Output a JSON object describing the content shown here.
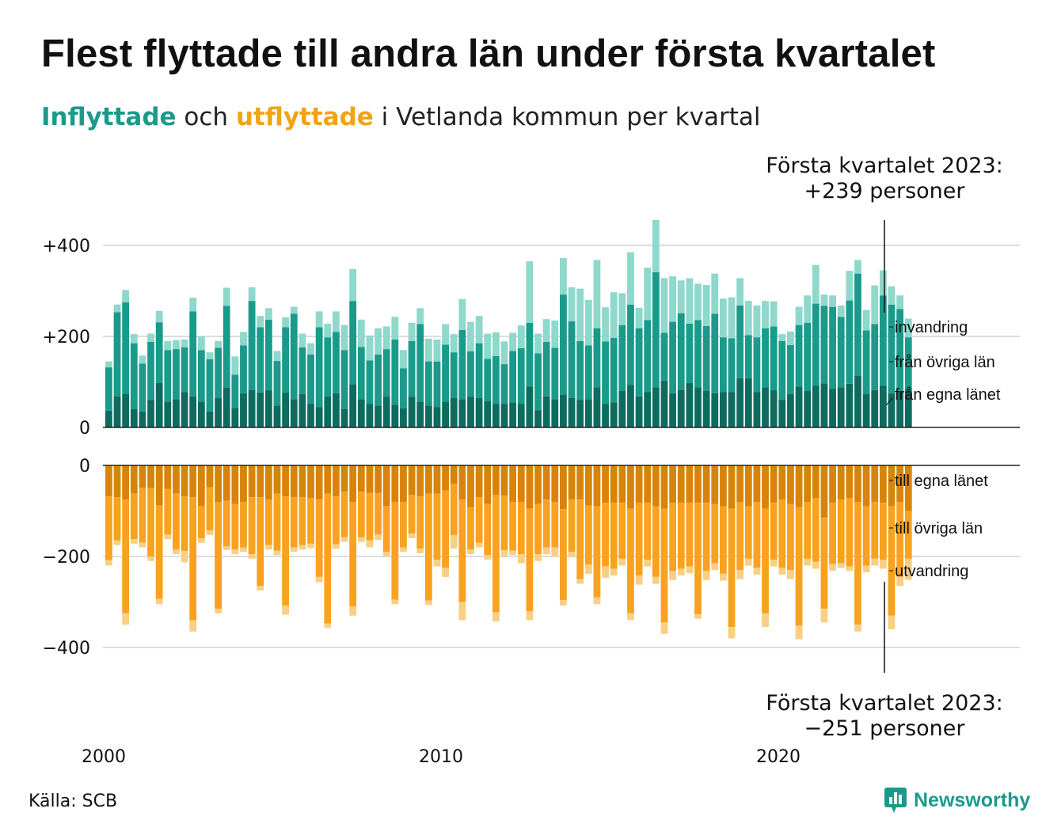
{
  "title": "Flest flyttade till andra län under första kvartalet",
  "subtitle": {
    "in_word": "Inflyttade",
    "and_word": "och",
    "out_word": "utflyttade",
    "rest": "i Vetlanda kommun per kvartal"
  },
  "source": "Källa: SCB",
  "logo_text": "Newsworthy",
  "colors": {
    "in_egna": "#0d6b5f",
    "in_ovriga": "#1a9a8a",
    "in_invandring": "#8ed8cc",
    "out_egna": "#d8840a",
    "out_ovriga": "#f8a21f",
    "out_utvandring": "#f9cf86",
    "grid": "#dddddd",
    "axis": "#222222"
  },
  "chart_data": {
    "type": "bar",
    "stacked": true,
    "period": "quarterly",
    "x_start": "2000 Q1",
    "x_end": "2023 Q1",
    "x_ticks": [
      "2000",
      "2010",
      "2020"
    ],
    "top_panel": {
      "y_ticks": [
        "+400",
        "+200",
        "0"
      ],
      "ylim": [
        0,
        460
      ],
      "series": [
        {
          "name": "från egna länet",
          "values": [
            37,
            68,
            73,
            40,
            35,
            60,
            98,
            57,
            62,
            78,
            68,
            57,
            35,
            65,
            87,
            43,
            75,
            83,
            77,
            82,
            48,
            77,
            62,
            73,
            52,
            45,
            68,
            75,
            40,
            95,
            62,
            52,
            48,
            67,
            50,
            42,
            67,
            57,
            48,
            45,
            57,
            65,
            62,
            67,
            65,
            58,
            52,
            52,
            55,
            52,
            90,
            38,
            68,
            62,
            72,
            65,
            60,
            62,
            88,
            52,
            55,
            80,
            93,
            68,
            78,
            88,
            103,
            75,
            83,
            98,
            88,
            80,
            75,
            78,
            78,
            108,
            108,
            78,
            88,
            82,
            60,
            73,
            90,
            80,
            92,
            97,
            85,
            88,
            96,
            113,
            73,
            82,
            92,
            75,
            80,
            85
          ]
        },
        {
          "name": "från övriga län",
          "values": [
            95,
            185,
            202,
            145,
            105,
            128,
            133,
            113,
            110,
            98,
            187,
            113,
            115,
            110,
            180,
            73,
            105,
            195,
            143,
            155,
            98,
            143,
            188,
            103,
            108,
            175,
            130,
            135,
            130,
            183,
            115,
            95,
            112,
            105,
            143,
            88,
            123,
            170,
            97,
            100,
            125,
            100,
            152,
            100,
            120,
            93,
            105,
            87,
            113,
            122,
            140,
            125,
            120,
            113,
            220,
            168,
            130,
            118,
            130,
            137,
            142,
            145,
            177,
            150,
            158,
            253,
            105,
            157,
            168,
            130,
            148,
            143,
            175,
            120,
            118,
            160,
            95,
            120,
            130,
            140,
            130,
            108,
            135,
            150,
            180,
            170,
            180,
            155,
            183,
            225,
            140,
            145,
            198,
            195,
            180,
            113
          ]
        },
        {
          "name": "invandring",
          "values": [
            13,
            17,
            27,
            20,
            18,
            18,
            25,
            20,
            20,
            17,
            30,
            30,
            15,
            15,
            40,
            40,
            30,
            30,
            25,
            25,
            22,
            22,
            15,
            30,
            25,
            35,
            30,
            45,
            55,
            70,
            60,
            55,
            58,
            50,
            50,
            40,
            40,
            35,
            50,
            48,
            45,
            40,
            68,
            65,
            60,
            55,
            52,
            50,
            40,
            50,
            135,
            43,
            50,
            60,
            80,
            75,
            115,
            100,
            150,
            75,
            100,
            70,
            115,
            45,
            115,
            115,
            120,
            100,
            72,
            100,
            80,
            90,
            88,
            85,
            90,
            60,
            75,
            70,
            60,
            55,
            15,
            30,
            40,
            60,
            85,
            25,
            25,
            25,
            65,
            30,
            45,
            85,
            55,
            40,
            30,
            41
          ]
        }
      ]
    },
    "bottom_panel": {
      "y_ticks": [
        "0",
        "−200",
        "−400"
      ],
      "ylim": [
        -460,
        0
      ],
      "series": [
        {
          "name": "till egna länet",
          "values": [
            -68,
            -70,
            -75,
            -62,
            -50,
            -50,
            -88,
            -52,
            -62,
            -68,
            -70,
            -90,
            -48,
            -80,
            -78,
            -85,
            -80,
            -70,
            -70,
            -75,
            -62,
            -68,
            -70,
            -70,
            -72,
            -75,
            -62,
            -68,
            -58,
            -80,
            -58,
            -60,
            -60,
            -90,
            -80,
            -80,
            -65,
            -68,
            -62,
            -62,
            -55,
            -40,
            -75,
            -92,
            -70,
            -85,
            -65,
            -66,
            -80,
            -80,
            -95,
            -85,
            -75,
            -80,
            -96,
            -75,
            -75,
            -88,
            -90,
            -82,
            -82,
            -82,
            -95,
            -82,
            -82,
            -90,
            -95,
            -82,
            -82,
            -82,
            -82,
            -82,
            -85,
            -90,
            -95,
            -80,
            -90,
            -80,
            -95,
            -82,
            -75,
            -85,
            -92,
            -80,
            -72,
            -115,
            -82,
            -75,
            -72,
            -80,
            -90,
            -80,
            -82,
            -90,
            -80,
            -100
          ]
        },
        {
          "name": "till övriga län",
          "values": [
            -140,
            -95,
            -250,
            -100,
            -120,
            -150,
            -205,
            -100,
            -123,
            -120,
            -270,
            -70,
            -95,
            -235,
            -100,
            -100,
            -100,
            -125,
            -195,
            -100,
            -125,
            -240,
            -110,
            -105,
            -100,
            -170,
            -285,
            -105,
            -100,
            -230,
            -100,
            -105,
            -92,
            -100,
            -215,
            -100,
            -85,
            -115,
            -235,
            -145,
            -170,
            -113,
            -225,
            -93,
            -100,
            -112,
            -258,
            -120,
            -107,
            -115,
            -225,
            -110,
            -105,
            -100,
            -200,
            -115,
            -175,
            -130,
            -200,
            -140,
            -145,
            -123,
            -230,
            -160,
            -125,
            -155,
            -250,
            -150,
            -145,
            -140,
            -245,
            -150,
            -130,
            -148,
            -260,
            -150,
            -115,
            -145,
            -230,
            -125,
            -150,
            -145,
            -260,
            -125,
            -140,
            -200,
            -135,
            -140,
            -150,
            -270,
            -130,
            -125,
            -125,
            -240,
            -165,
            -105
          ]
        },
        {
          "name": "utvandring",
          "values": [
            -12,
            -10,
            -25,
            -10,
            -10,
            -10,
            -12,
            -10,
            -10,
            -25,
            -25,
            -10,
            -10,
            -10,
            -8,
            -10,
            -10,
            -10,
            -10,
            -10,
            -10,
            -20,
            -10,
            -10,
            -10,
            -12,
            -10,
            -10,
            -10,
            -20,
            -10,
            -15,
            -12,
            -10,
            -10,
            -10,
            -10,
            -10,
            -10,
            -15,
            -20,
            -30,
            -40,
            -10,
            -10,
            -10,
            -20,
            -15,
            -10,
            -20,
            -20,
            -15,
            -15,
            -20,
            -12,
            -12,
            -10,
            -20,
            -15,
            -25,
            -15,
            -15,
            -15,
            -20,
            -15,
            -15,
            -25,
            -20,
            -15,
            -15,
            -10,
            -20,
            -15,
            -15,
            -25,
            -20,
            -15,
            -15,
            -30,
            -15,
            -15,
            -20,
            -30,
            -15,
            -15,
            -30,
            -15,
            -10,
            -10,
            -15,
            -15,
            -15,
            -20,
            -30,
            -20,
            -46
          ]
        }
      ]
    },
    "annotations": {
      "top_line1": "Första kvartalet 2023:",
      "top_line2": "+239 personer",
      "bottom_line1": "Första kvartalet 2023:",
      "bottom_line2": "−251 personer"
    },
    "segment_labels_top": [
      "invandring",
      "från övriga län",
      "från egna länet"
    ],
    "segment_labels_bottom": [
      "till egna länet",
      "till övriga län",
      "utvandring"
    ]
  }
}
